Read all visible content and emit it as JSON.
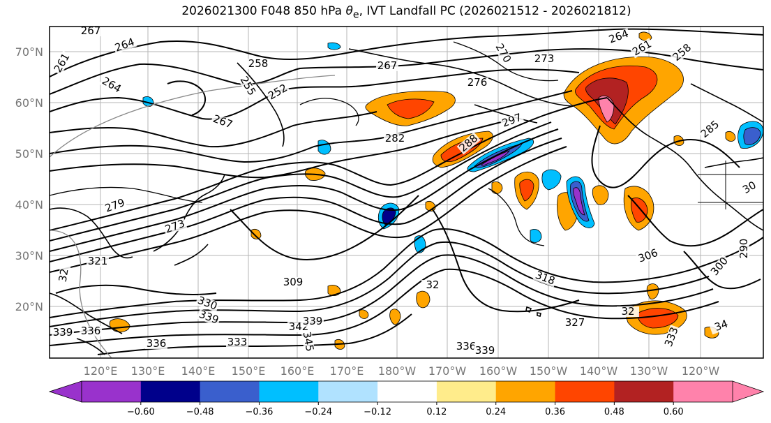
{
  "title": {
    "prefix": "2026021300 F048 850 hPa ",
    "symbol": "θ",
    "subscript": "e",
    "suffix": ", IVT Landfall PC (2026021512 - 2026021812)"
  },
  "lat_labels": [
    "70°N",
    "60°N",
    "50°N",
    "40°N",
    "30°N",
    "20°N"
  ],
  "lon_labels": [
    "120°E",
    "130°E",
    "140°E",
    "150°E",
    "160°E",
    "170°E",
    "180°W",
    "170°W",
    "160°W",
    "150°W",
    "140°W",
    "130°W",
    "120°W"
  ],
  "contour_labels": [
    "267",
    "264",
    "261",
    "258",
    "255",
    "252",
    "264",
    "267",
    "276",
    "273",
    "270",
    "267",
    "264",
    "261",
    "258",
    "282",
    "288",
    "285",
    "297",
    "279",
    "273",
    "290",
    "321",
    "32",
    "309",
    "318",
    "330",
    "339",
    "342",
    "339",
    "345",
    "336",
    "333",
    "339",
    "336",
    "327",
    "32",
    "306",
    "300",
    "30",
    "333",
    "34",
    "339",
    "336",
    "32"
  ],
  "colorbar": {
    "ticks": [
      "−0.60",
      "−0.48",
      "−0.36",
      "−0.24",
      "−0.12",
      "0.12",
      "0.24",
      "0.36",
      "0.48",
      "0.60"
    ],
    "colors": [
      "#9932cc",
      "#00008b",
      "#3a5fcd",
      "#00bfff",
      "#b0e2ff",
      "#ffffff",
      "#ffec8b",
      "#ffa500",
      "#ff4500",
      "#b22222",
      "#ff82ab"
    ]
  }
}
